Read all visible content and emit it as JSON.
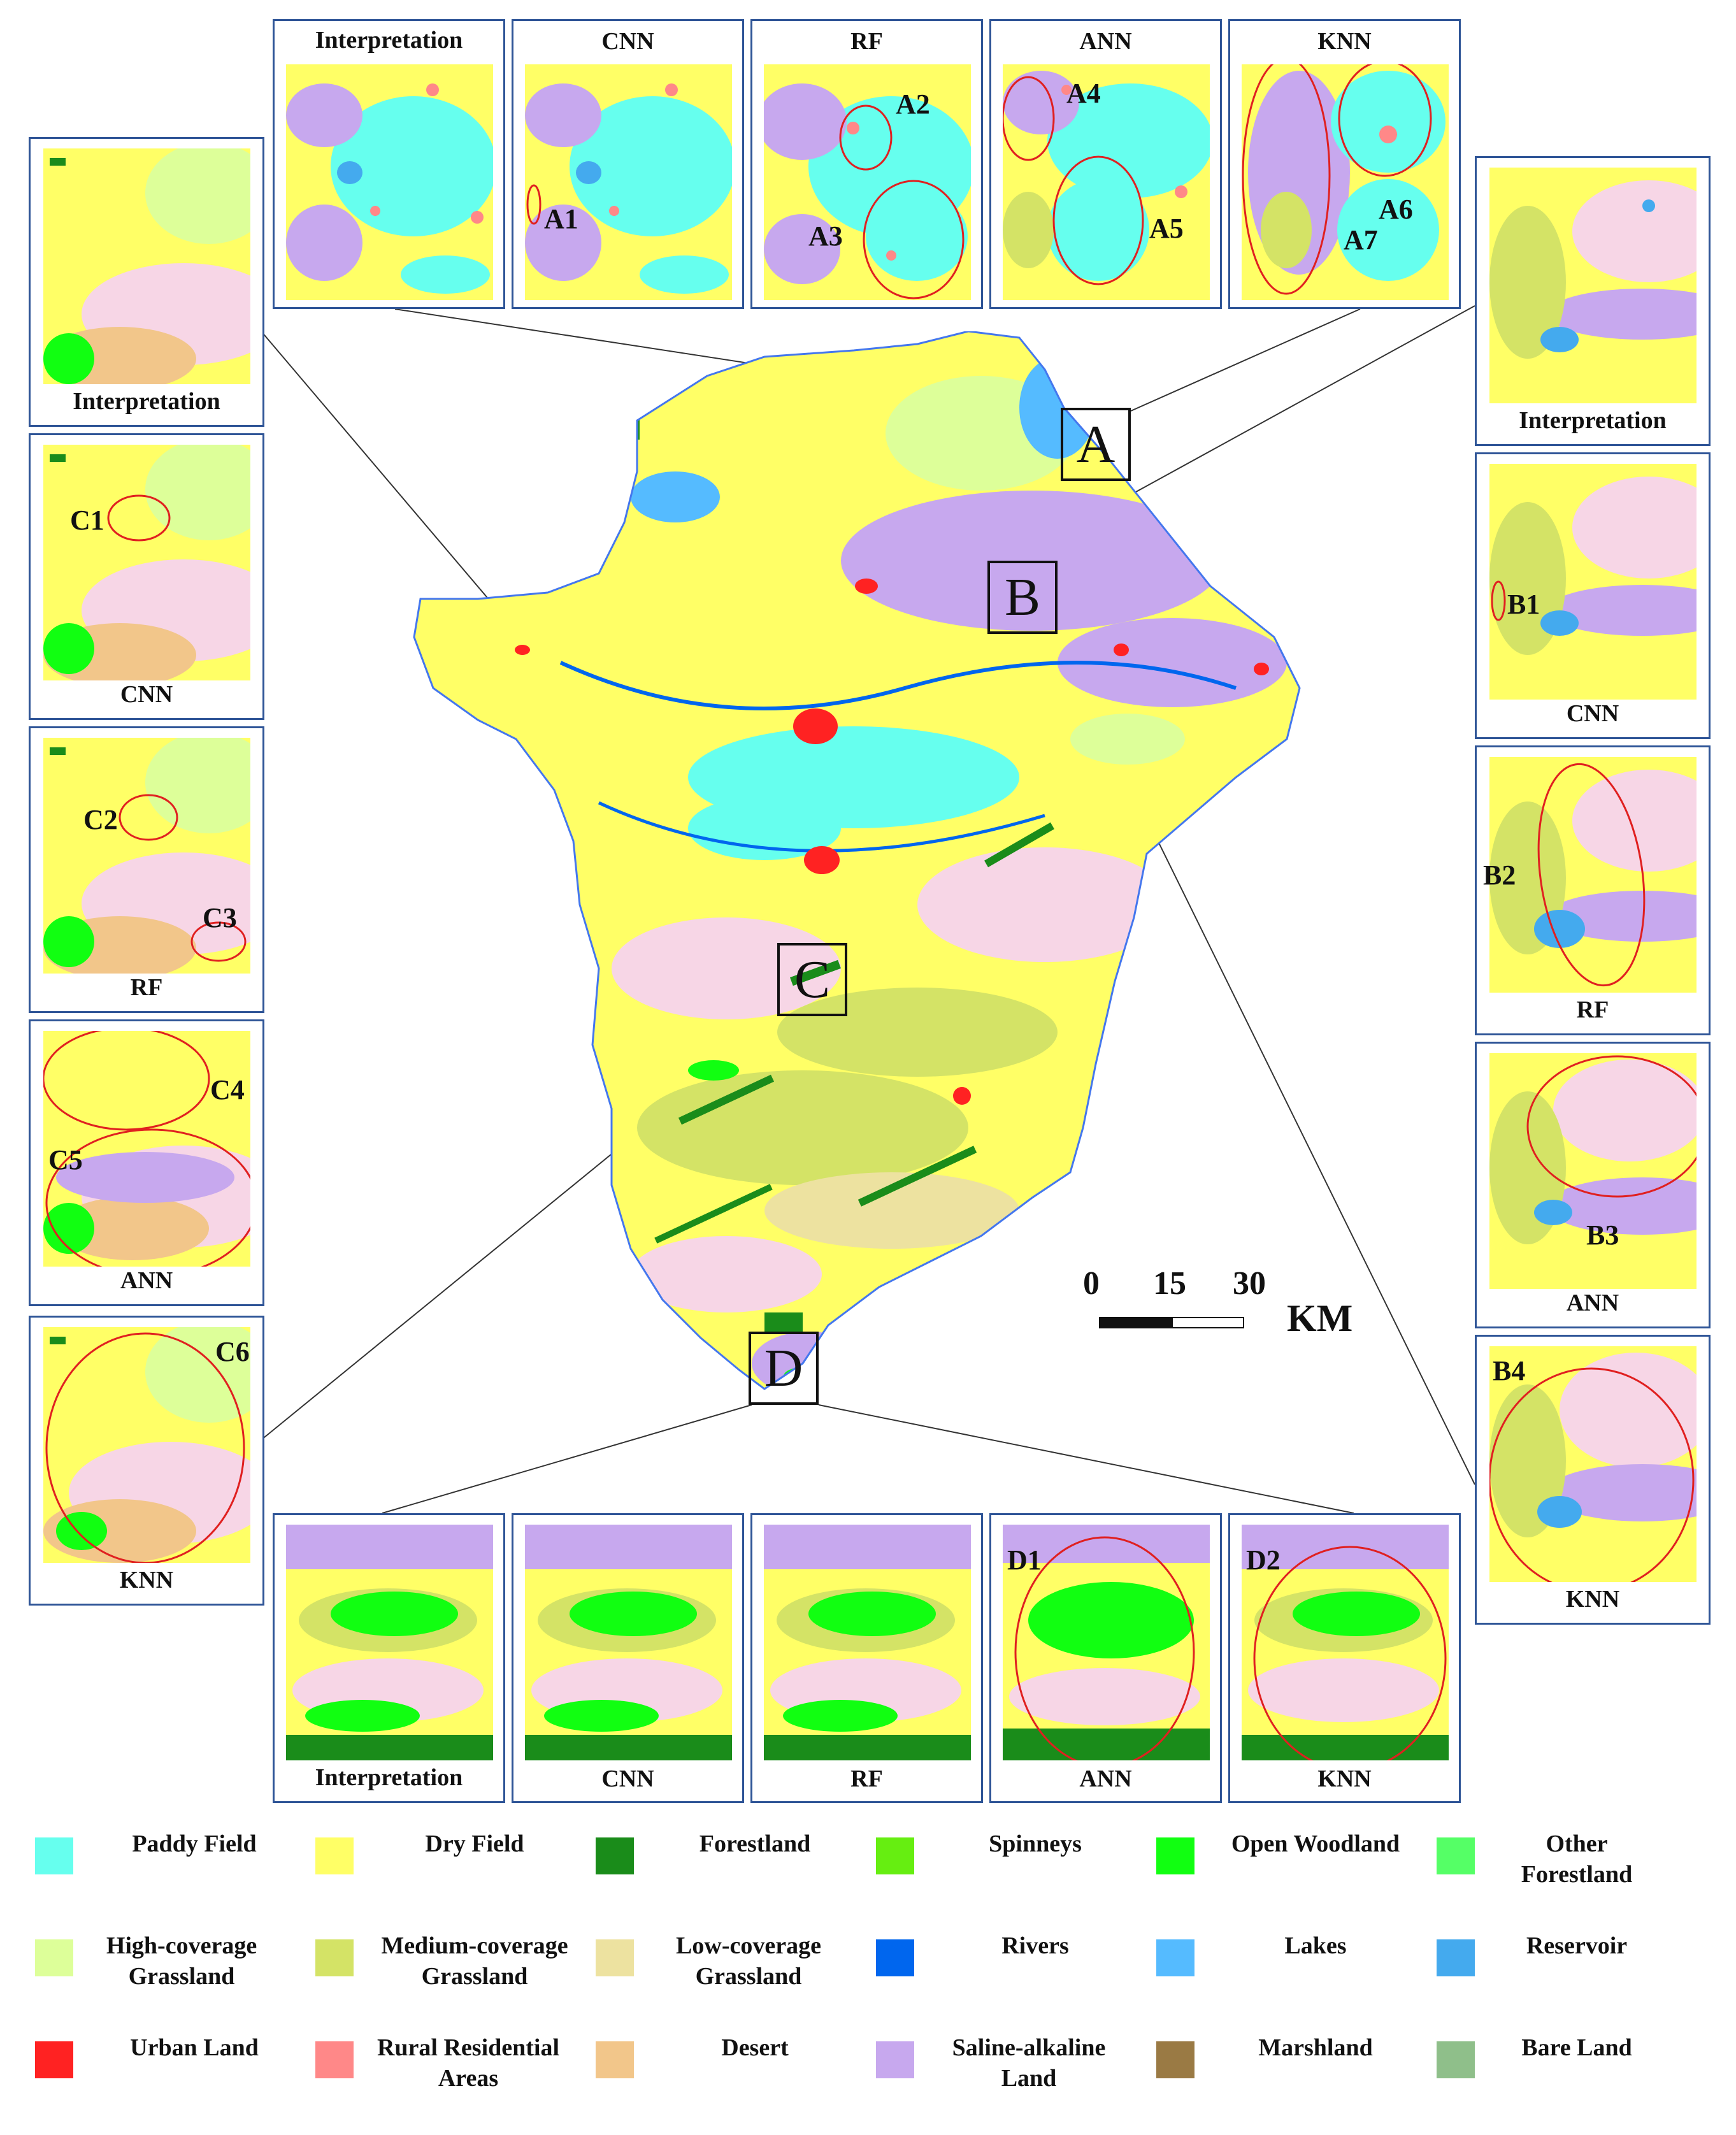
{
  "panels": {
    "top": [
      "Interpretation",
      "CNN",
      "RF",
      "ANN",
      "KNN"
    ],
    "left": [
      "Interpretation",
      "CNN",
      "RF",
      "ANN",
      "KNN"
    ],
    "right": [
      "Interpretation",
      "CNN",
      "RF",
      "ANN",
      "KNN"
    ],
    "bottom": [
      "Interpretation",
      "CNN",
      "RF",
      "ANN",
      "KNN"
    ]
  },
  "regions": [
    "A",
    "B",
    "C",
    "D"
  ],
  "markers": {
    "A1": "A1",
    "A2": "A2",
    "A3": "A3",
    "A4": "A4",
    "A5": "A5",
    "A6": "A6",
    "A7": "A7",
    "B1": "B1",
    "B2": "B2",
    "B3": "B3",
    "B4": "B4",
    "C1": "C1",
    "C2": "C2",
    "C3": "C3",
    "C4": "C4",
    "C5": "C5",
    "C6": "C6",
    "D1": "D1",
    "D2": "D2"
  },
  "scale": {
    "ticks": [
      "0",
      "15",
      "30"
    ],
    "unit": "KM"
  },
  "legend": [
    {
      "label": "Paddy Field",
      "color": "#66ffee"
    },
    {
      "label": "Dry Field",
      "color": "#ffff66"
    },
    {
      "label": "Forestland",
      "color": "#1a8c1a"
    },
    {
      "label": "Spinneys",
      "color": "#66ee11"
    },
    {
      "label": "Open Woodland",
      "color": "#11ff11"
    },
    {
      "label": "Other Forestland",
      "color": "#55ff66"
    },
    {
      "label": "High-coverage Grassland",
      "color": "#ddff99"
    },
    {
      "label": "Medium-coverage Grassland",
      "color": "#d4e366"
    },
    {
      "label": "Low-coverage Grassland",
      "color": "#ede2a0"
    },
    {
      "label": "Rivers",
      "color": "#0066ee"
    },
    {
      "label": "Lakes",
      "color": "#55bbff"
    },
    {
      "label": "Reservoir",
      "color": "#44aaee"
    },
    {
      "label": "Urban Land",
      "color": "#ff2222"
    },
    {
      "label": "Rural Residential Areas",
      "color": "#ff8888"
    },
    {
      "label": "Desert",
      "color": "#f2c68a"
    },
    {
      "label": "Saline-alkaline Land",
      "color": "#c7a8ee"
    },
    {
      "label": "Marshland",
      "color": "#9a7a44"
    },
    {
      "label": "Bare Land",
      "color": "#8fbf8a"
    }
  ]
}
